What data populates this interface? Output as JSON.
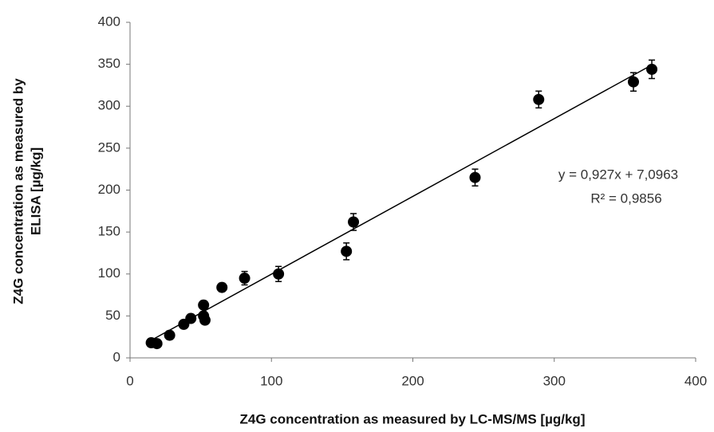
{
  "chart_data": {
    "type": "scatter",
    "x_label": "Z4G concentration as measured by LC-MS/MS [µg/kg]",
    "y_label": [
      "Z4G concentration as measured by",
      "ELISA [µg/kg]"
    ],
    "series": [
      {
        "color": "#000000",
        "x": [
          15,
          19,
          28,
          38,
          43,
          52,
          52,
          53,
          65,
          81,
          105,
          153,
          158,
          244,
          289,
          356,
          369
        ],
        "values": [
          18,
          17,
          27,
          40,
          47,
          63,
          50,
          45,
          84,
          95,
          100,
          127,
          162,
          215,
          308,
          329,
          344
        ],
        "errors": [
          4,
          4,
          5,
          4,
          4,
          5,
          5,
          4,
          5,
          8,
          9,
          10,
          10,
          10,
          10,
          11,
          11
        ]
      }
    ],
    "trendline": {
      "slope": 0.927,
      "intercept": 7.0963,
      "equation": "y = 0,927x + 7,0963",
      "r2": "R² = 0,9856"
    },
    "xlim": [
      0,
      400
    ],
    "xticks": [
      0,
      100,
      200,
      300,
      400
    ],
    "ylim": [
      0,
      400
    ],
    "yticks": [
      0,
      50,
      100,
      150,
      200,
      250,
      300,
      350,
      400
    ],
    "grid": false
  }
}
